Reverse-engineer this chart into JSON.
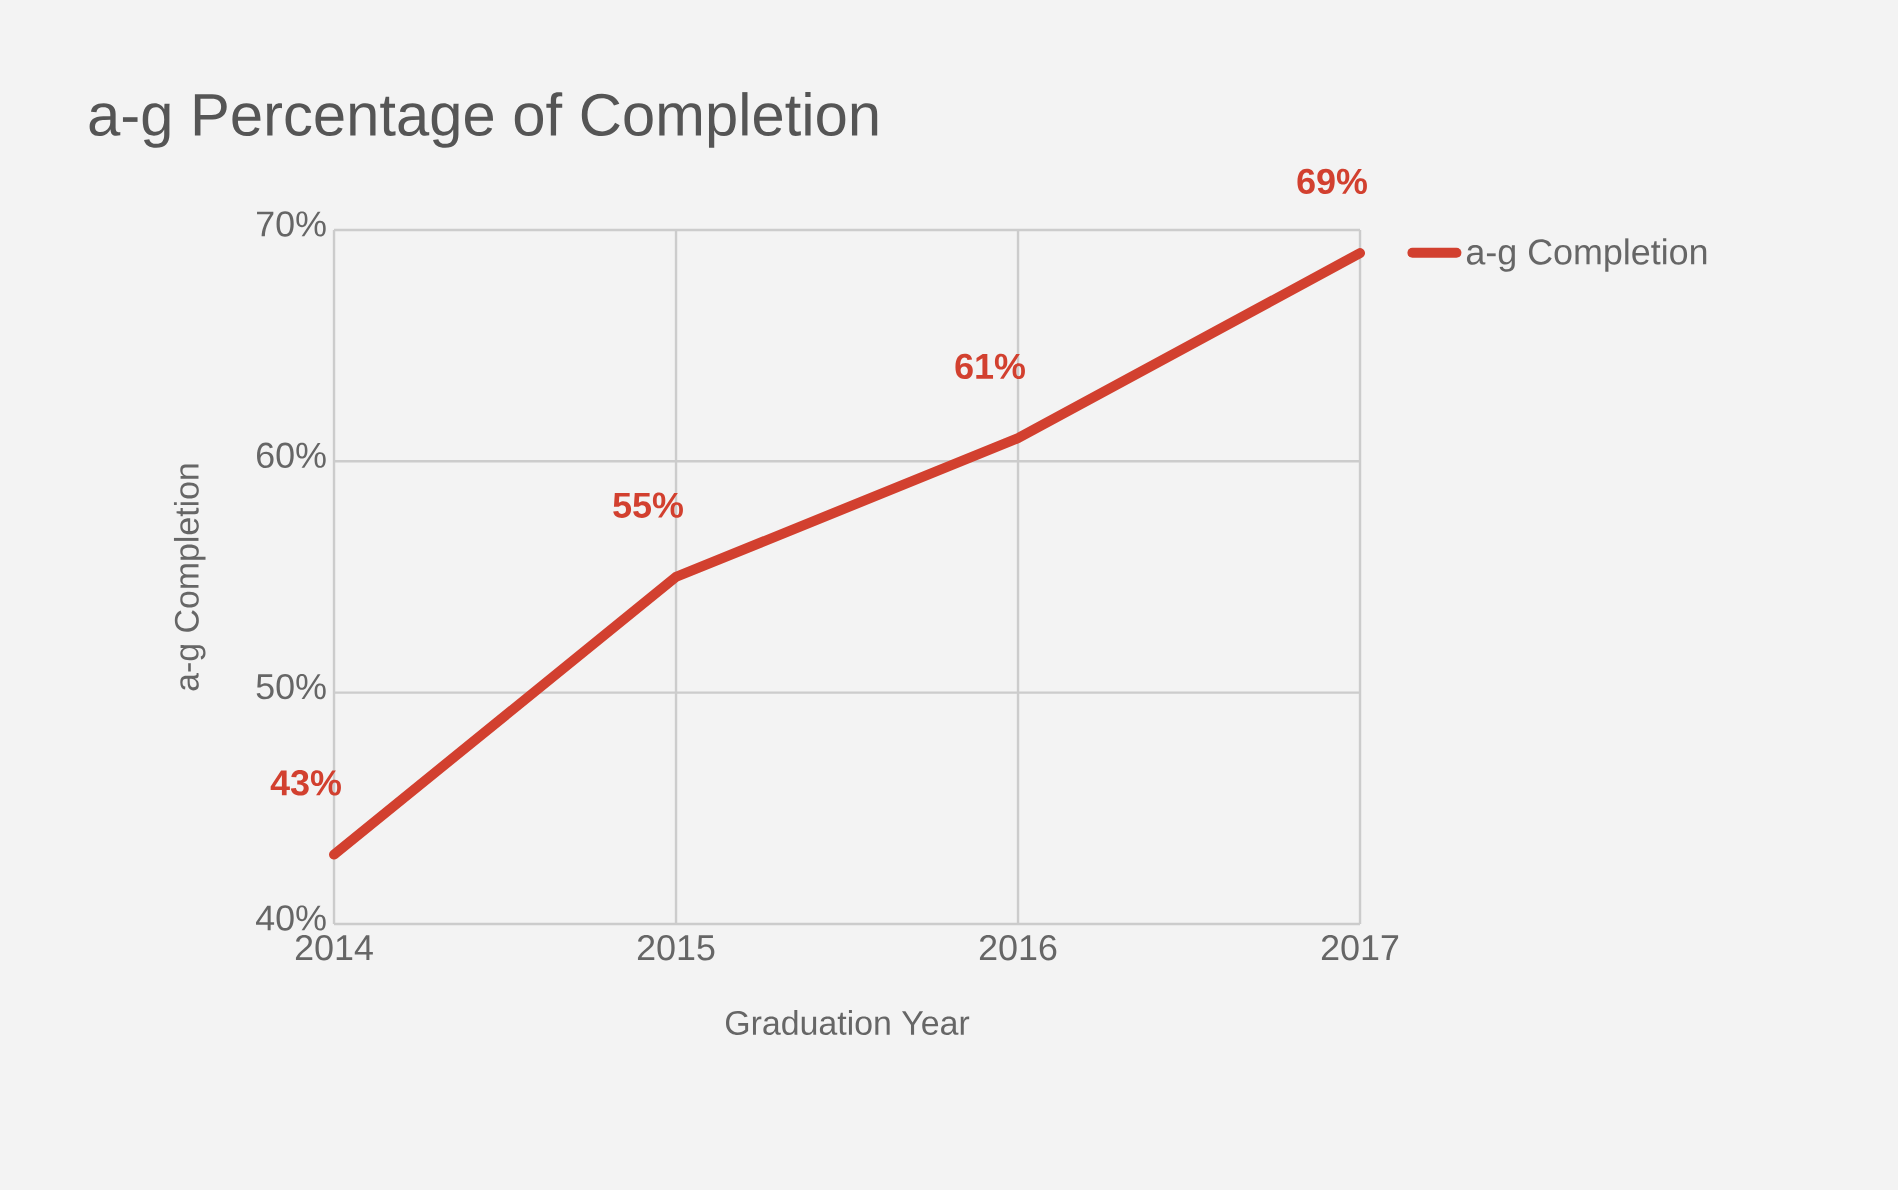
{
  "chart_data": {
    "type": "line",
    "title": "a-g Percentage of Completion",
    "xlabel": "Graduation Year",
    "ylabel": "a-g Completion",
    "categories": [
      "2014",
      "2015",
      "2016",
      "2017"
    ],
    "series": [
      {
        "name": "a-g Completion",
        "color": "#d2402f",
        "values": [
          43,
          55,
          61,
          69
        ],
        "value_labels": [
          "43%",
          "55%",
          "61%",
          "69%"
        ]
      }
    ],
    "ylim": [
      40,
      70
    ],
    "yticks": [
      {
        "value": 40,
        "label": "40%"
      },
      {
        "value": 50,
        "label": "50%"
      },
      {
        "value": 60,
        "label": "60%"
      },
      {
        "value": 70,
        "label": "70%"
      }
    ],
    "grid": true,
    "legend": "top right",
    "marker": "none",
    "line_style": "solid"
  }
}
